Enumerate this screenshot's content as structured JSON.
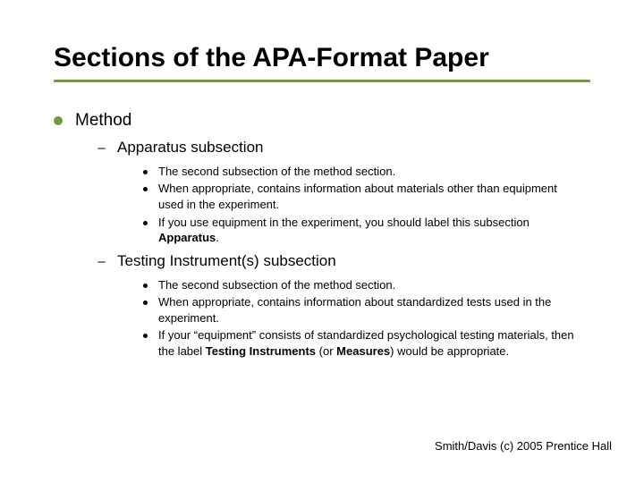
{
  "colors": {
    "accent": "#6f9b3c",
    "text": "#000000",
    "background": "#ffffff"
  },
  "typography": {
    "title_fontsize": 30,
    "lvl1_fontsize": 19,
    "lvl2_fontsize": 17,
    "lvl3_fontsize": 13,
    "footer_fontsize": 13,
    "font_family": "Arial"
  },
  "title": "Sections of the APA-Format Paper",
  "lvl1": {
    "label": "Method"
  },
  "sections": [
    {
      "heading": "Apparatus subsection",
      "points": [
        {
          "text": "The second subsection of the method section."
        },
        {
          "text": "When appropriate, contains information about materials other than equipment used in the experiment."
        },
        {
          "text_pre": "If you use equipment in the experiment, you should label this subsection ",
          "bold": "Apparatus",
          "text_post": "."
        }
      ]
    },
    {
      "heading": "Testing Instrument(s) subsection",
      "points": [
        {
          "text": "The second subsection of the method section."
        },
        {
          "text": "When appropriate, contains information about standardized tests used in the experiment."
        },
        {
          "text_pre": "If your “equipment” consists of standardized psychological testing materials, then the label ",
          "bold": "Testing Instruments",
          "text_mid": " (or ",
          "bold2": "Measures",
          "text_post": ") would be appropriate."
        }
      ]
    }
  ],
  "footer": "Smith/Davis (c) 2005 Prentice Hall"
}
